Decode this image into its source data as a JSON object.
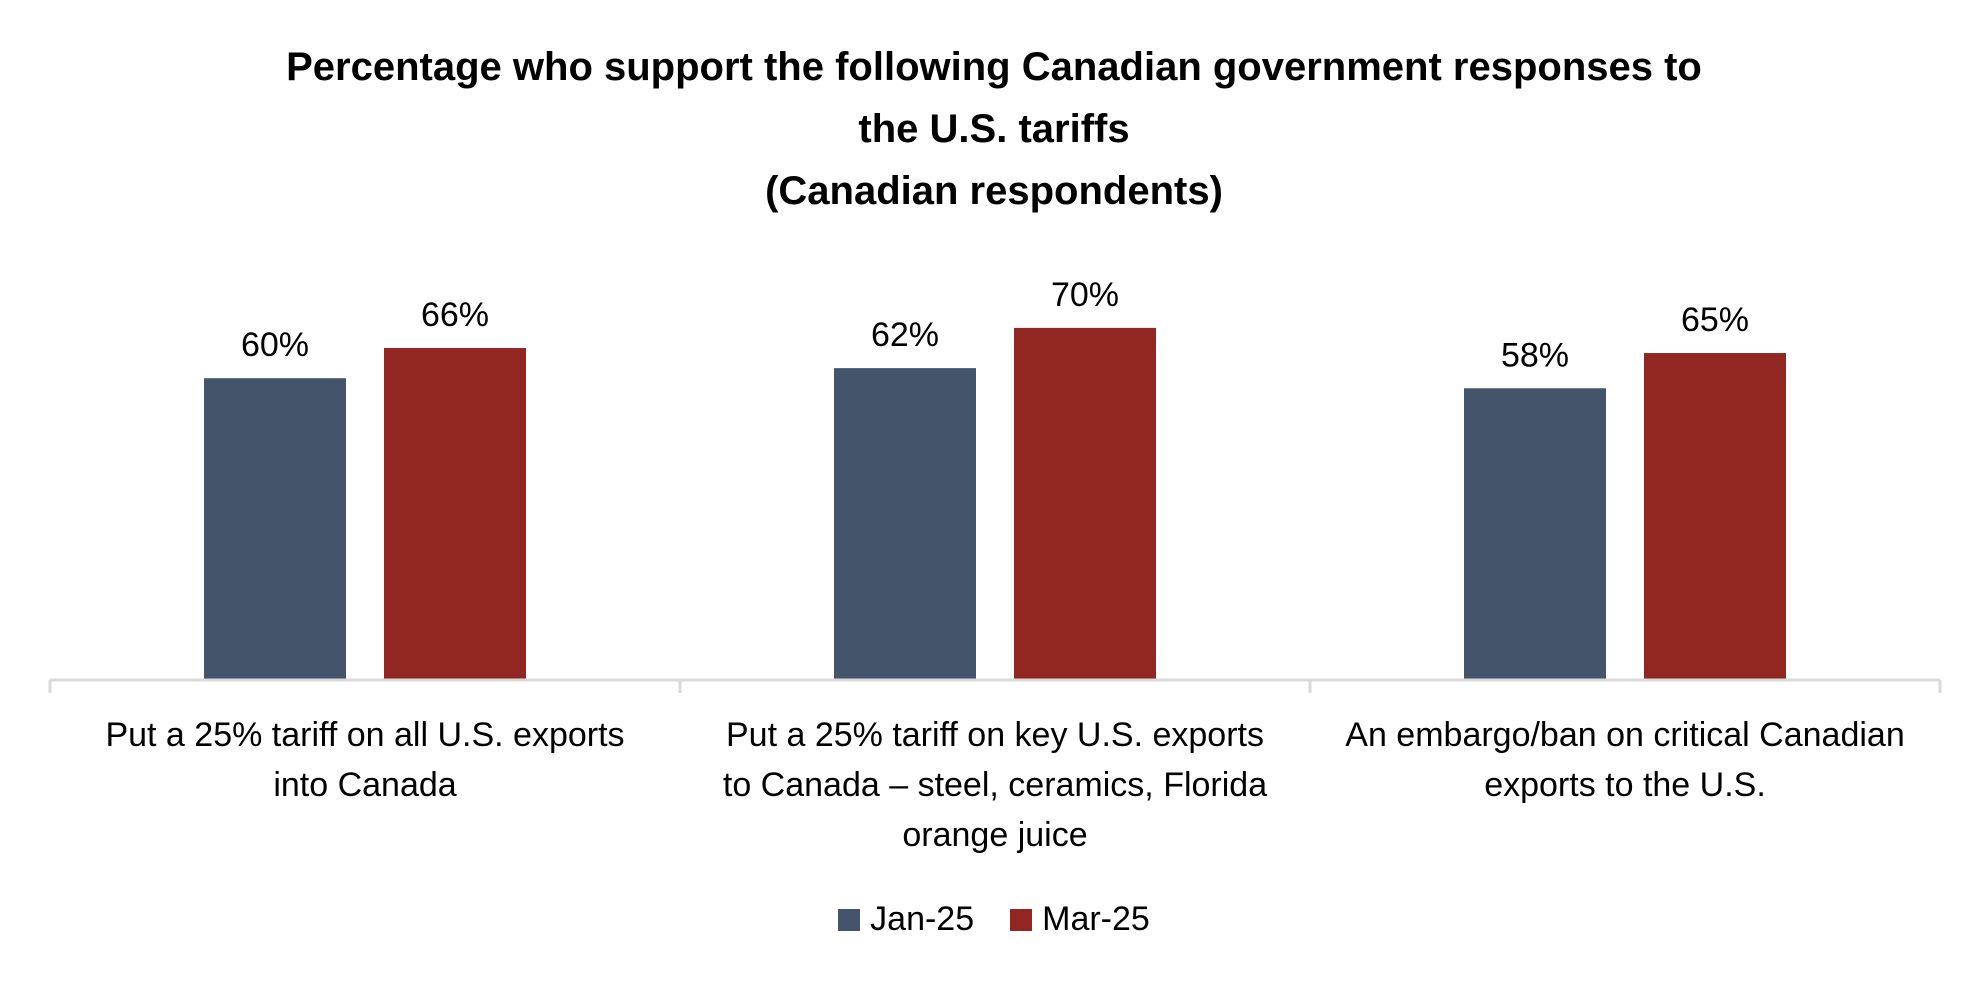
{
  "chart_data": {
    "type": "bar",
    "title_lines": [
      "Percentage who support the following Canadian government responses to",
      "the U.S. tariffs",
      "(Canadian respondents)"
    ],
    "categories": [
      [
        "Put a 25% tariff on all U.S. exports",
        "into Canada"
      ],
      [
        "Put a 25% tariff on key U.S. exports",
        "to Canada – steel, ceramics, Florida",
        "orange juice"
      ],
      [
        "An embargo/ban on critical Canadian",
        "exports to the U.S."
      ]
    ],
    "series": [
      {
        "name": "Jan-25",
        "color": "#44546A",
        "values": [
          60,
          62,
          58
        ],
        "labels": [
          "60%",
          "62%",
          "58%"
        ]
      },
      {
        "name": "Mar-25",
        "color": "#922623",
        "values": [
          66,
          70,
          65
        ],
        "labels": [
          "66%",
          "70%",
          "65%"
        ]
      }
    ],
    "ylim": [
      0,
      100
    ],
    "grid": false,
    "legend_position": "bottom-center"
  }
}
